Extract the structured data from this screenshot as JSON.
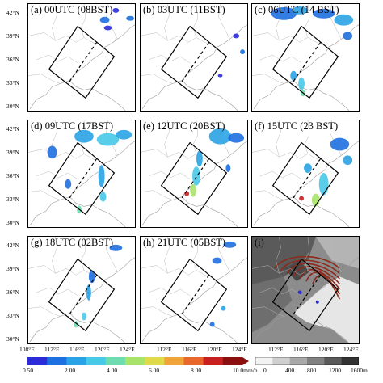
{
  "panels": [
    {
      "label": "(a) 00UTC (08BST)"
    },
    {
      "label": "(b) 03UTC (11BST)"
    },
    {
      "label": "(c) 06UTC (14 BST)"
    },
    {
      "label": "(d) 09UTC (17BST)"
    },
    {
      "label": "(e) 12UTC (20BST)"
    },
    {
      "label": "(f) 15UTC (23 BST)"
    },
    {
      "label": "(g) 18UTC (02BST)"
    },
    {
      "label": "(h) 21UTC (05BST)"
    },
    {
      "label": "(i)"
    }
  ],
  "lat_ticks": [
    "42°N",
    "39°N",
    "36°N",
    "33°N",
    "30°N"
  ],
  "lon_ticks": [
    "108°E",
    "112°E",
    "116°E",
    "120°E",
    "124°E"
  ],
  "rain_colorbar": {
    "ticks": [
      "0.50",
      "2.00",
      "4.00",
      "6.00",
      "8.00",
      "10.0mm/h"
    ],
    "colors": [
      "#2b2bd9",
      "#1e6fe0",
      "#2aa3e6",
      "#47c9e8",
      "#6fdcb0",
      "#a8e36b",
      "#e0d94a",
      "#f0a53a",
      "#e8672d",
      "#c81f1f",
      "#8a0f0f"
    ]
  },
  "terrain_colorbar": {
    "ticks": [
      "0",
      "400",
      "800",
      "1200",
      "1600m"
    ],
    "colors": [
      "#f2f2f2",
      "#cfcfcf",
      "#a9a9a9",
      "#828282",
      "#5a5a5a",
      "#333333"
    ]
  }
}
